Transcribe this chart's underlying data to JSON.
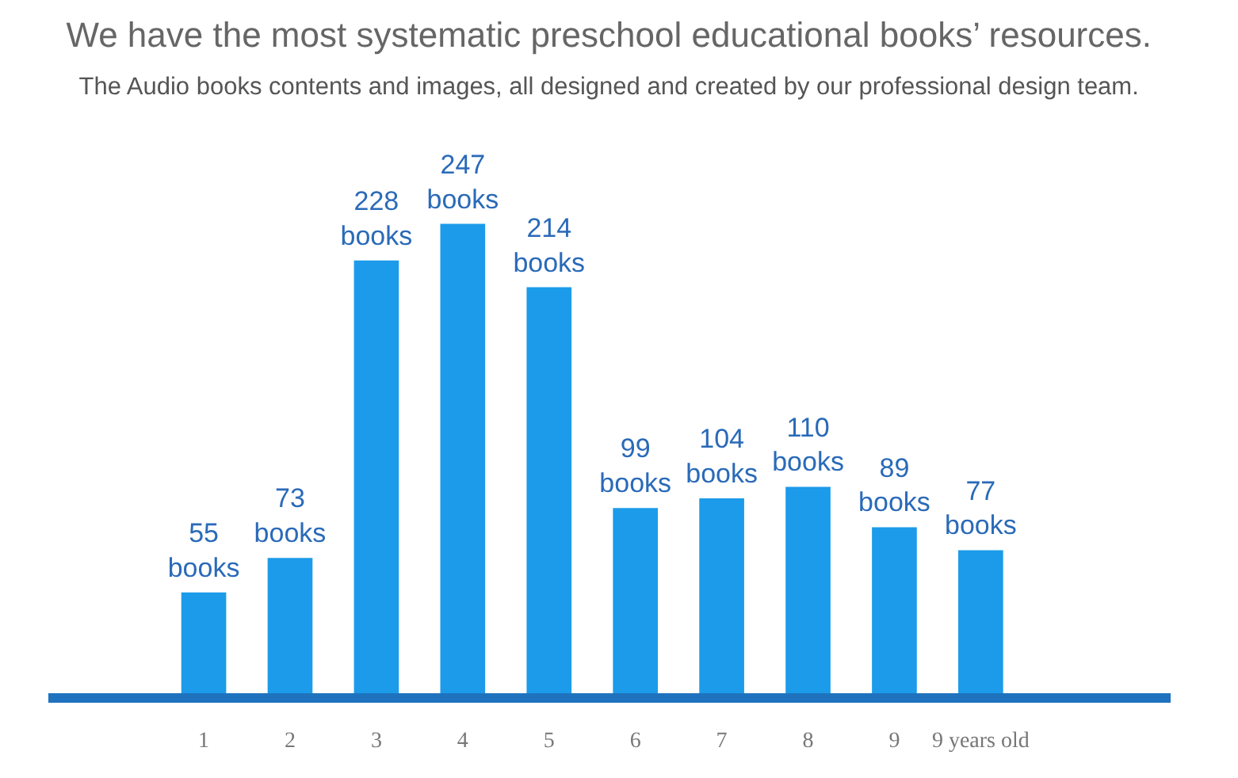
{
  "chart_data": {
    "type": "bar",
    "title": "We have the most systematic preschool educational books’ resources.",
    "subtitle": "The Audio books contents and images, all designed and created by our professional design team.",
    "categories": [
      "1",
      "2",
      "3",
      "4",
      "5",
      "6",
      "7",
      "8",
      "9",
      "9 years old"
    ],
    "values": [
      55,
      73,
      228,
      247,
      214,
      99,
      104,
      110,
      89,
      77
    ],
    "value_labels": [
      "55 books",
      "73 books",
      "228 books",
      "247 books",
      "214 books",
      "99 books",
      "104 books",
      "110 books",
      "89 books",
      "77 books"
    ],
    "color": "#1b9be9",
    "tick_labels": "x"
  }
}
